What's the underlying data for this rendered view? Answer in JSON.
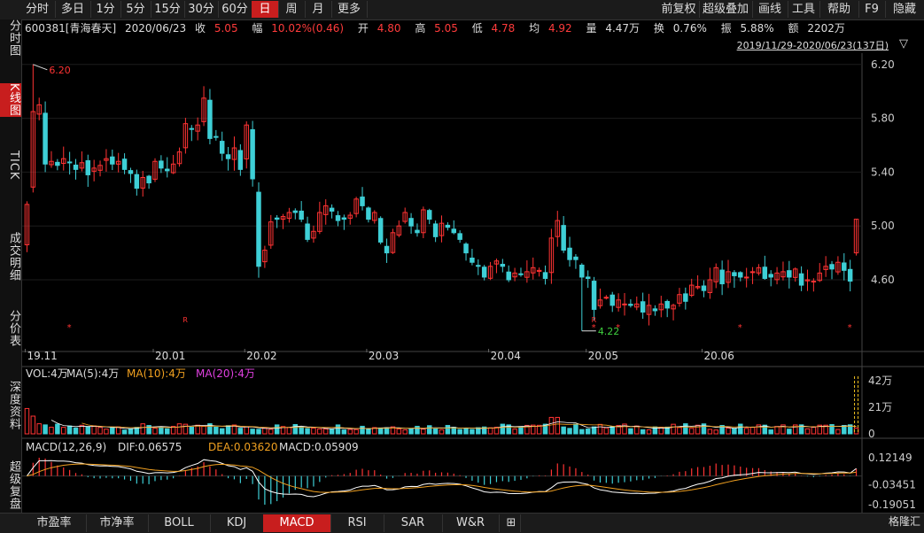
{
  "toolbar": {
    "periods": [
      "分时",
      "多日",
      "1分",
      "5分",
      "15分",
      "30分",
      "60分",
      "日",
      "周",
      "月",
      "更多"
    ],
    "active_period": "日",
    "right_buttons": [
      "前复权",
      "超级叠加",
      "画线",
      "工具",
      "帮助",
      "F9",
      "隐藏"
    ]
  },
  "quote": {
    "code_name": "600381[青海春天]",
    "date": "2020/06/23",
    "close_label": "收",
    "close": "5.05",
    "change_label": "幅",
    "change": "10.02%(0.46)",
    "open_label": "开",
    "open": "4.80",
    "high_label": "高",
    "high": "5.05",
    "low_label": "低",
    "low": "4.78",
    "avg_label": "均",
    "avg": "4.92",
    "volume_label": "量",
    "volume": "4.47万",
    "turnover_label": "换",
    "turnover": "0.76%",
    "amplitude_label": "振",
    "amplitude": "5.88%",
    "amount_label": "额",
    "amount": "2202万"
  },
  "date_range": "2019/11/29-2020/06/23(137日)",
  "sidebar": [
    "分时图",
    "K线图",
    "TICK",
    "成交明细",
    "分价表",
    "深度资料",
    "超级复盘"
  ],
  "sidebar_active": "K线图",
  "indicators": {
    "vol_line": [
      "VOL:4万",
      "MA(5):4万",
      "MA(10):4万",
      "MA(20):4万"
    ],
    "macd_line": [
      "MACD(12,26,9)",
      "DIF:0.06575",
      "DEA:0.03620",
      "MACD:0.05909"
    ]
  },
  "bottom_tabs": [
    "市盈率",
    "市净率",
    "BOLL",
    "KDJ",
    "MACD",
    "RSI",
    "SAR",
    "W&R"
  ],
  "bottom_active": "MACD",
  "logo": "格隆汇",
  "colors": {
    "up": "#ff3333",
    "down": "#3ecfd6",
    "ma5": "#ffffff",
    "ma10": "#f0a020",
    "ma20": "#e040e0",
    "bg": "#000000"
  },
  "chart_data": [
    {
      "type": "candlestick",
      "title": "600381 青海春天 日K",
      "ylim": [
        4.1,
        6.35
      ],
      "y_ticks": [
        4.6,
        5.0,
        5.4,
        5.8,
        6.2
      ],
      "x_ticks": [
        "19.11",
        "20.01",
        "20.02",
        "20.03",
        "20.04",
        "20.05",
        "20.06"
      ],
      "x_tick_index": [
        0,
        21,
        36,
        56,
        76,
        92,
        111
      ],
      "annotations": [
        {
          "label": "6.20",
          "index": 1,
          "type": "high"
        },
        {
          "label": "4.22",
          "index": 91,
          "type": "low"
        }
      ],
      "markers": [
        {
          "index": 7,
          "symbol": "*"
        },
        {
          "index": 26,
          "symbol": "R"
        },
        {
          "index": 93,
          "symbol": "R"
        },
        {
          "index": 93,
          "symbol": "*"
        },
        {
          "index": 97,
          "symbol": "*"
        },
        {
          "index": 117,
          "symbol": "*"
        },
        {
          "index": 135,
          "symbol": "*"
        }
      ],
      "closes": [
        5.16,
        5.85,
        5.9,
        5.46,
        5.48,
        5.45,
        5.5,
        5.47,
        5.42,
        5.47,
        5.38,
        5.43,
        5.45,
        5.5,
        5.46,
        5.48,
        5.42,
        5.39,
        5.28,
        5.36,
        5.32,
        5.48,
        5.43,
        5.41,
        5.46,
        5.55,
        5.76,
        5.72,
        5.75,
        5.95,
        5.65,
        5.66,
        5.54,
        5.5,
        5.58,
        5.42,
        5.75,
        5.35,
        4.7,
        4.82,
        5.03,
        5.05,
        5.07,
        5.1,
        5.1,
        5.05,
        4.9,
        4.96,
        5.1,
        5.15,
        5.11,
        5.04,
        5.05,
        5.08,
        5.2,
        5.15,
        5.05,
        5.1,
        4.88,
        4.8,
        4.95,
        5.0,
        5.1,
        5.0,
        4.95,
        5.12,
        5.05,
        4.92,
        5.02,
        4.99,
        4.95,
        4.9,
        4.8,
        4.73,
        4.7,
        4.62,
        4.7,
        4.74,
        4.7,
        4.6,
        4.65,
        4.64,
        4.66,
        4.69,
        4.67,
        4.61,
        4.91,
        5.04,
        4.82,
        4.75,
        4.75,
        4.62,
        4.61,
        4.38,
        4.45,
        4.47,
        4.41,
        4.45,
        4.42,
        4.41,
        4.42,
        4.36,
        4.41,
        4.37,
        4.42,
        4.39,
        4.41,
        4.49,
        4.44,
        4.56,
        4.55,
        4.52,
        4.6,
        4.69,
        4.57,
        4.66,
        4.63,
        4.62,
        4.62,
        4.66,
        4.69,
        4.61,
        4.62,
        4.65,
        4.66,
        4.62,
        4.68,
        4.56,
        4.6,
        4.59,
        4.65,
        4.7,
        4.68,
        4.73,
        4.67,
        4.59,
        5.05
      ],
      "volume_ylim": [
        0,
        42
      ],
      "volume_ticks": [
        "42万",
        "21万",
        "0"
      ],
      "macd_ylim": [
        -0.19051,
        0.12149
      ],
      "macd_ticks": [
        "0.12149",
        "-0.03451",
        "-0.19051"
      ]
    }
  ]
}
